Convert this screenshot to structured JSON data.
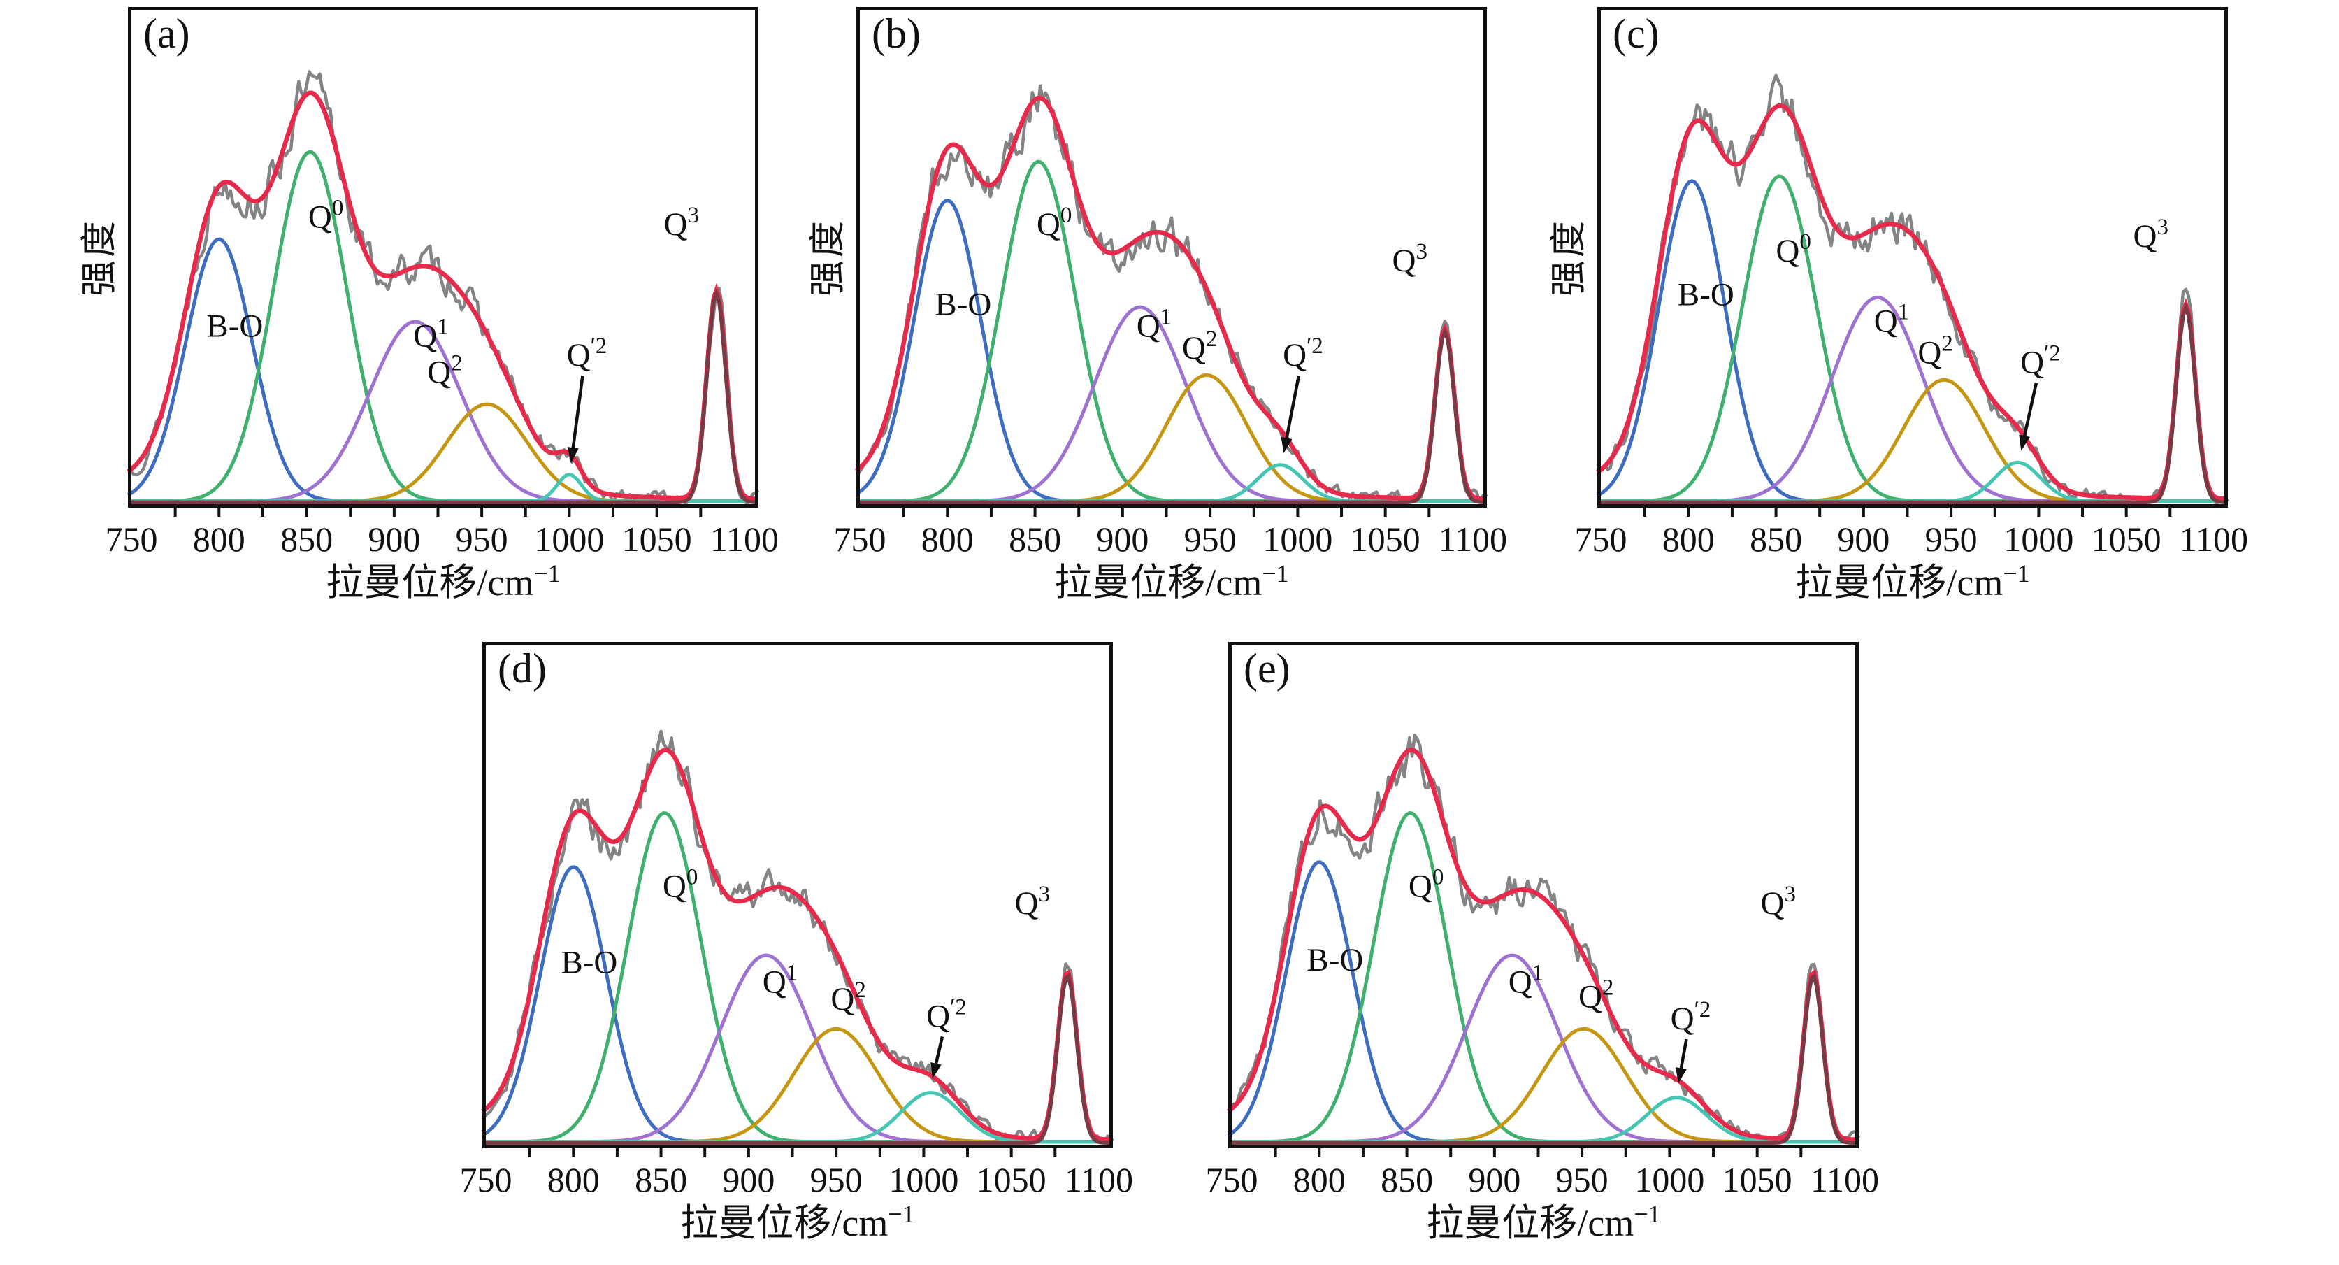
{
  "colors": {
    "raw": "#848484",
    "fit": "#e62a4c",
    "bo": "#3d6cc0",
    "q0": "#3fb06e",
    "q1": "#9d72d0",
    "q2": "#c49612",
    "qp2": "#44c6b2",
    "q3": "#7a3a44",
    "axis": "#111111"
  },
  "chart_data": [
    {
      "type": "line",
      "panel_label": "(a)",
      "ylabel": "强度",
      "xlabel_base": "拉曼位移/cm",
      "xlabel_sup": "−1",
      "x_ticks": [
        750,
        800,
        850,
        900,
        950,
        1000,
        1050,
        1100
      ],
      "x_range": [
        748,
        1108
      ],
      "noise_seed": 13,
      "noise_level": 0.055,
      "background": {
        "center": 840,
        "sigma": 85,
        "amplitude": 0.08
      },
      "peaks": [
        {
          "id": "B-O",
          "label_base": "B-O",
          "label_sup": "",
          "color": "bo",
          "center": 800,
          "sigma": 19,
          "amplitude": 0.54,
          "label_at": [
            809,
            0.345
          ]
        },
        {
          "id": "Q0",
          "label_base": "Q",
          "label_sup": "0",
          "color": "q0",
          "center": 852,
          "sigma": 21,
          "amplitude": 0.72,
          "label_at": [
            861,
            0.57
          ]
        },
        {
          "id": "Q1",
          "label_base": "Q",
          "label_sup": "1",
          "color": "q1",
          "center": 912,
          "sigma": 26,
          "amplitude": 0.37,
          "label_at": [
            921,
            0.325
          ]
        },
        {
          "id": "Q2",
          "label_base": "Q",
          "label_sup": "2",
          "color": "q2",
          "center": 953,
          "sigma": 23,
          "amplitude": 0.2,
          "label_at": [
            929,
            0.25
          ]
        },
        {
          "id": "Q'2",
          "label_base": "Q",
          "label_sup": "′2",
          "color": "qp2",
          "center": 1000,
          "sigma": 7,
          "amplitude": 0.055,
          "label_at": [
            1010,
            0.285
          ],
          "arrow_to": [
            1001,
            0.085
          ]
        },
        {
          "id": "Q3",
          "label_base": "Q",
          "label_sup": "3",
          "color": "q3",
          "center": 1084,
          "sigma": 5.5,
          "amplitude": 0.43,
          "label_at": [
            1064,
            0.555
          ]
        }
      ]
    },
    {
      "type": "line",
      "panel_label": "(b)",
      "ylabel": "强度",
      "xlabel_base": "拉曼位移/cm",
      "xlabel_sup": "−1",
      "x_ticks": [
        750,
        800,
        850,
        900,
        950,
        1000,
        1050,
        1100
      ],
      "x_range": [
        748,
        1108
      ],
      "noise_seed": 47,
      "noise_level": 0.055,
      "background": {
        "center": 840,
        "sigma": 85,
        "amplitude": 0.08
      },
      "peaks": [
        {
          "id": "B-O",
          "label_base": "B-O",
          "label_sup": "",
          "color": "bo",
          "center": 800,
          "sigma": 19,
          "amplitude": 0.62,
          "label_at": [
            809,
            0.39
          ]
        },
        {
          "id": "Q0",
          "label_base": "Q",
          "label_sup": "0",
          "color": "q0",
          "center": 852,
          "sigma": 21,
          "amplitude": 0.7,
          "label_at": [
            861,
            0.555
          ]
        },
        {
          "id": "Q1",
          "label_base": "Q",
          "label_sup": "1",
          "color": "q1",
          "center": 910,
          "sigma": 26,
          "amplitude": 0.4,
          "label_at": [
            918,
            0.345
          ]
        },
        {
          "id": "Q2",
          "label_base": "Q",
          "label_sup": "2",
          "color": "q2",
          "center": 948,
          "sigma": 23,
          "amplitude": 0.26,
          "label_at": [
            944,
            0.3
          ]
        },
        {
          "id": "Q'2",
          "label_base": "Q",
          "label_sup": "′2",
          "color": "qp2",
          "center": 990,
          "sigma": 13,
          "amplitude": 0.075,
          "label_at": [
            1003,
            0.285
          ],
          "arrow_to": [
            992,
            0.105
          ]
        },
        {
          "id": "Q3",
          "label_base": "Q",
          "label_sup": "3",
          "color": "q3",
          "center": 1084,
          "sigma": 5.5,
          "amplitude": 0.35,
          "label_at": [
            1064,
            0.48
          ]
        }
      ]
    },
    {
      "type": "line",
      "panel_label": "(c)",
      "ylabel": "强度",
      "xlabel_base": "拉曼位移/cm",
      "xlabel_sup": "−1",
      "x_ticks": [
        750,
        800,
        850,
        900,
        950,
        1000,
        1050,
        1100
      ],
      "x_range": [
        748,
        1108
      ],
      "noise_seed": 81,
      "noise_level": 0.055,
      "background": {
        "center": 840,
        "sigma": 85,
        "amplitude": 0.08
      },
      "peaks": [
        {
          "id": "B-O",
          "label_base": "B-O",
          "label_sup": "",
          "color": "bo",
          "center": 802,
          "sigma": 19,
          "amplitude": 0.66,
          "label_at": [
            810,
            0.41
          ]
        },
        {
          "id": "Q0",
          "label_base": "Q",
          "label_sup": "0",
          "color": "q0",
          "center": 852,
          "sigma": 21,
          "amplitude": 0.67,
          "label_at": [
            860,
            0.5
          ]
        },
        {
          "id": "Q1",
          "label_base": "Q",
          "label_sup": "1",
          "color": "q1",
          "center": 908,
          "sigma": 26,
          "amplitude": 0.42,
          "label_at": [
            916,
            0.355
          ]
        },
        {
          "id": "Q2",
          "label_base": "Q",
          "label_sup": "2",
          "color": "q2",
          "center": 946,
          "sigma": 23,
          "amplitude": 0.25,
          "label_at": [
            941,
            0.29
          ]
        },
        {
          "id": "Q'2",
          "label_base": "Q",
          "label_sup": "′2",
          "color": "qp2",
          "center": 988,
          "sigma": 13,
          "amplitude": 0.08,
          "label_at": [
            1001,
            0.27
          ],
          "arrow_to": [
            990,
            0.11
          ]
        },
        {
          "id": "Q3",
          "label_base": "Q",
          "label_sup": "3",
          "color": "q3",
          "center": 1084,
          "sigma": 5.5,
          "amplitude": 0.4,
          "label_at": [
            1064,
            0.53
          ]
        }
      ]
    },
    {
      "type": "line",
      "panel_label": "(d)",
      "ylabel": "",
      "xlabel_base": "拉曼位移/cm",
      "xlabel_sup": "−1",
      "x_ticks": [
        750,
        800,
        850,
        900,
        950,
        1000,
        1050,
        1100
      ],
      "x_range": [
        748,
        1108
      ],
      "noise_seed": 29,
      "noise_level": 0.055,
      "background": {
        "center": 840,
        "sigma": 85,
        "amplitude": 0.08
      },
      "peaks": [
        {
          "id": "B-O",
          "label_base": "B-O",
          "label_sup": "",
          "color": "bo",
          "center": 800,
          "sigma": 19,
          "amplitude": 0.56,
          "label_at": [
            809,
            0.35
          ]
        },
        {
          "id": "Q0",
          "label_base": "Q",
          "label_sup": "0",
          "color": "q0",
          "center": 852,
          "sigma": 21,
          "amplitude": 0.67,
          "label_at": [
            861,
            0.505
          ]
        },
        {
          "id": "Q1",
          "label_base": "Q",
          "label_sup": "1",
          "color": "q1",
          "center": 910,
          "sigma": 26,
          "amplitude": 0.38,
          "label_at": [
            918,
            0.31
          ]
        },
        {
          "id": "Q2",
          "label_base": "Q",
          "label_sup": "2",
          "color": "q2",
          "center": 950,
          "sigma": 24,
          "amplitude": 0.23,
          "label_at": [
            957,
            0.275
          ]
        },
        {
          "id": "Q'2",
          "label_base": "Q",
          "label_sup": "′2",
          "color": "qp2",
          "center": 1004,
          "sigma": 17,
          "amplitude": 0.1,
          "label_at": [
            1013,
            0.24
          ],
          "arrow_to": [
            1005,
            0.135
          ]
        },
        {
          "id": "Q3",
          "label_base": "Q",
          "label_sup": "3",
          "color": "q3",
          "center": 1082,
          "sigma": 5.5,
          "amplitude": 0.34,
          "label_at": [
            1062,
            0.47
          ]
        }
      ]
    },
    {
      "type": "line",
      "panel_label": "(e)",
      "ylabel": "",
      "xlabel_base": "拉曼位移/cm",
      "xlabel_sup": "−1",
      "x_ticks": [
        750,
        800,
        850,
        900,
        950,
        1000,
        1050,
        1100
      ],
      "x_range": [
        748,
        1108
      ],
      "noise_seed": 64,
      "noise_level": 0.055,
      "background": {
        "center": 840,
        "sigma": 85,
        "amplitude": 0.08
      },
      "peaks": [
        {
          "id": "B-O",
          "label_base": "B-O",
          "label_sup": "",
          "color": "bo",
          "center": 800,
          "sigma": 19,
          "amplitude": 0.57,
          "label_at": [
            809,
            0.355
          ]
        },
        {
          "id": "Q0",
          "label_base": "Q",
          "label_sup": "0",
          "color": "q0",
          "center": 852,
          "sigma": 21,
          "amplitude": 0.67,
          "label_at": [
            861,
            0.505
          ]
        },
        {
          "id": "Q1",
          "label_base": "Q",
          "label_sup": "1",
          "color": "q1",
          "center": 910,
          "sigma": 26,
          "amplitude": 0.38,
          "label_at": [
            918,
            0.31
          ]
        },
        {
          "id": "Q2",
          "label_base": "Q",
          "label_sup": "2",
          "color": "q2",
          "center": 951,
          "sigma": 24,
          "amplitude": 0.23,
          "label_at": [
            958,
            0.28
          ]
        },
        {
          "id": "Q'2",
          "label_base": "Q",
          "label_sup": "′2",
          "color": "qp2",
          "center": 1004,
          "sigma": 17,
          "amplitude": 0.09,
          "label_at": [
            1012,
            0.235
          ],
          "arrow_to": [
            1005,
            0.125
          ]
        },
        {
          "id": "Q3",
          "label_base": "Q",
          "label_sup": "3",
          "color": "q3",
          "center": 1082,
          "sigma": 5.5,
          "amplitude": 0.34,
          "label_at": [
            1062,
            0.47
          ]
        }
      ]
    }
  ]
}
